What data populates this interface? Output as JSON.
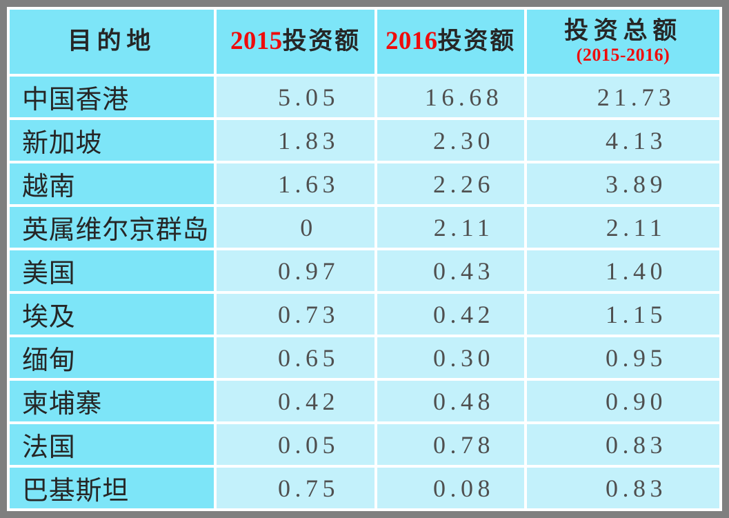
{
  "palette": {
    "frame_gray": "#7f7f7f",
    "header_cell_bg": "#7de5f8",
    "data_cell_bg": "#c3f1fb",
    "gap_white": "#ffffff",
    "accent_red": "#ee0c0c",
    "text_dark": "#262626",
    "text_number": "#4f4f4f"
  },
  "header": {
    "destination": "目的地",
    "y2015_year": "2015",
    "y2015_label": "投资额",
    "y2016_year": "2016",
    "y2016_label": "投资额",
    "total_label": "投资总额",
    "total_range": "(2015-2016)"
  },
  "rows": [
    {
      "destination": "中国香港",
      "y2015": "5.05",
      "y2016": "16.68",
      "total": "21.73"
    },
    {
      "destination": "新加坡",
      "y2015": "1.83",
      "y2016": "2.30",
      "total": "4.13"
    },
    {
      "destination": "越南",
      "y2015": "1.63",
      "y2016": "2.26",
      "total": "3.89"
    },
    {
      "destination": "英属维尔京群岛",
      "y2015": "0",
      "y2016": "2.11",
      "total": "2.11"
    },
    {
      "destination": "美国",
      "y2015": "0.97",
      "y2016": "0.43",
      "total": "1.40"
    },
    {
      "destination": "埃及",
      "y2015": "0.73",
      "y2016": "0.42",
      "total": "1.15"
    },
    {
      "destination": "缅甸",
      "y2015": "0.65",
      "y2016": "0.30",
      "total": "0.95"
    },
    {
      "destination": "柬埔寨",
      "y2015": "0.42",
      "y2016": "0.48",
      "total": "0.90"
    },
    {
      "destination": "法国",
      "y2015": "0.05",
      "y2016": "0.78",
      "total": "0.83"
    },
    {
      "destination": "巴基斯坦",
      "y2015": "0.75",
      "y2016": "0.08",
      "total": "0.83"
    }
  ],
  "chart_data": {
    "type": "table",
    "title": "",
    "columns": [
      "目的地",
      "2015投资额",
      "2016投资额",
      "投资总额(2015-2016)"
    ],
    "rows": [
      [
        "中国香港",
        5.05,
        16.68,
        21.73
      ],
      [
        "新加坡",
        1.83,
        2.3,
        4.13
      ],
      [
        "越南",
        1.63,
        2.26,
        3.89
      ],
      [
        "英属维尔京群岛",
        0,
        2.11,
        2.11
      ],
      [
        "美国",
        0.97,
        0.43,
        1.4
      ],
      [
        "埃及",
        0.73,
        0.42,
        1.15
      ],
      [
        "缅甸",
        0.65,
        0.3,
        0.95
      ],
      [
        "柬埔寨",
        0.42,
        0.48,
        0.9
      ],
      [
        "法国",
        0.05,
        0.78,
        0.83
      ],
      [
        "巴基斯坦",
        0.75,
        0.08,
        0.83
      ]
    ]
  }
}
